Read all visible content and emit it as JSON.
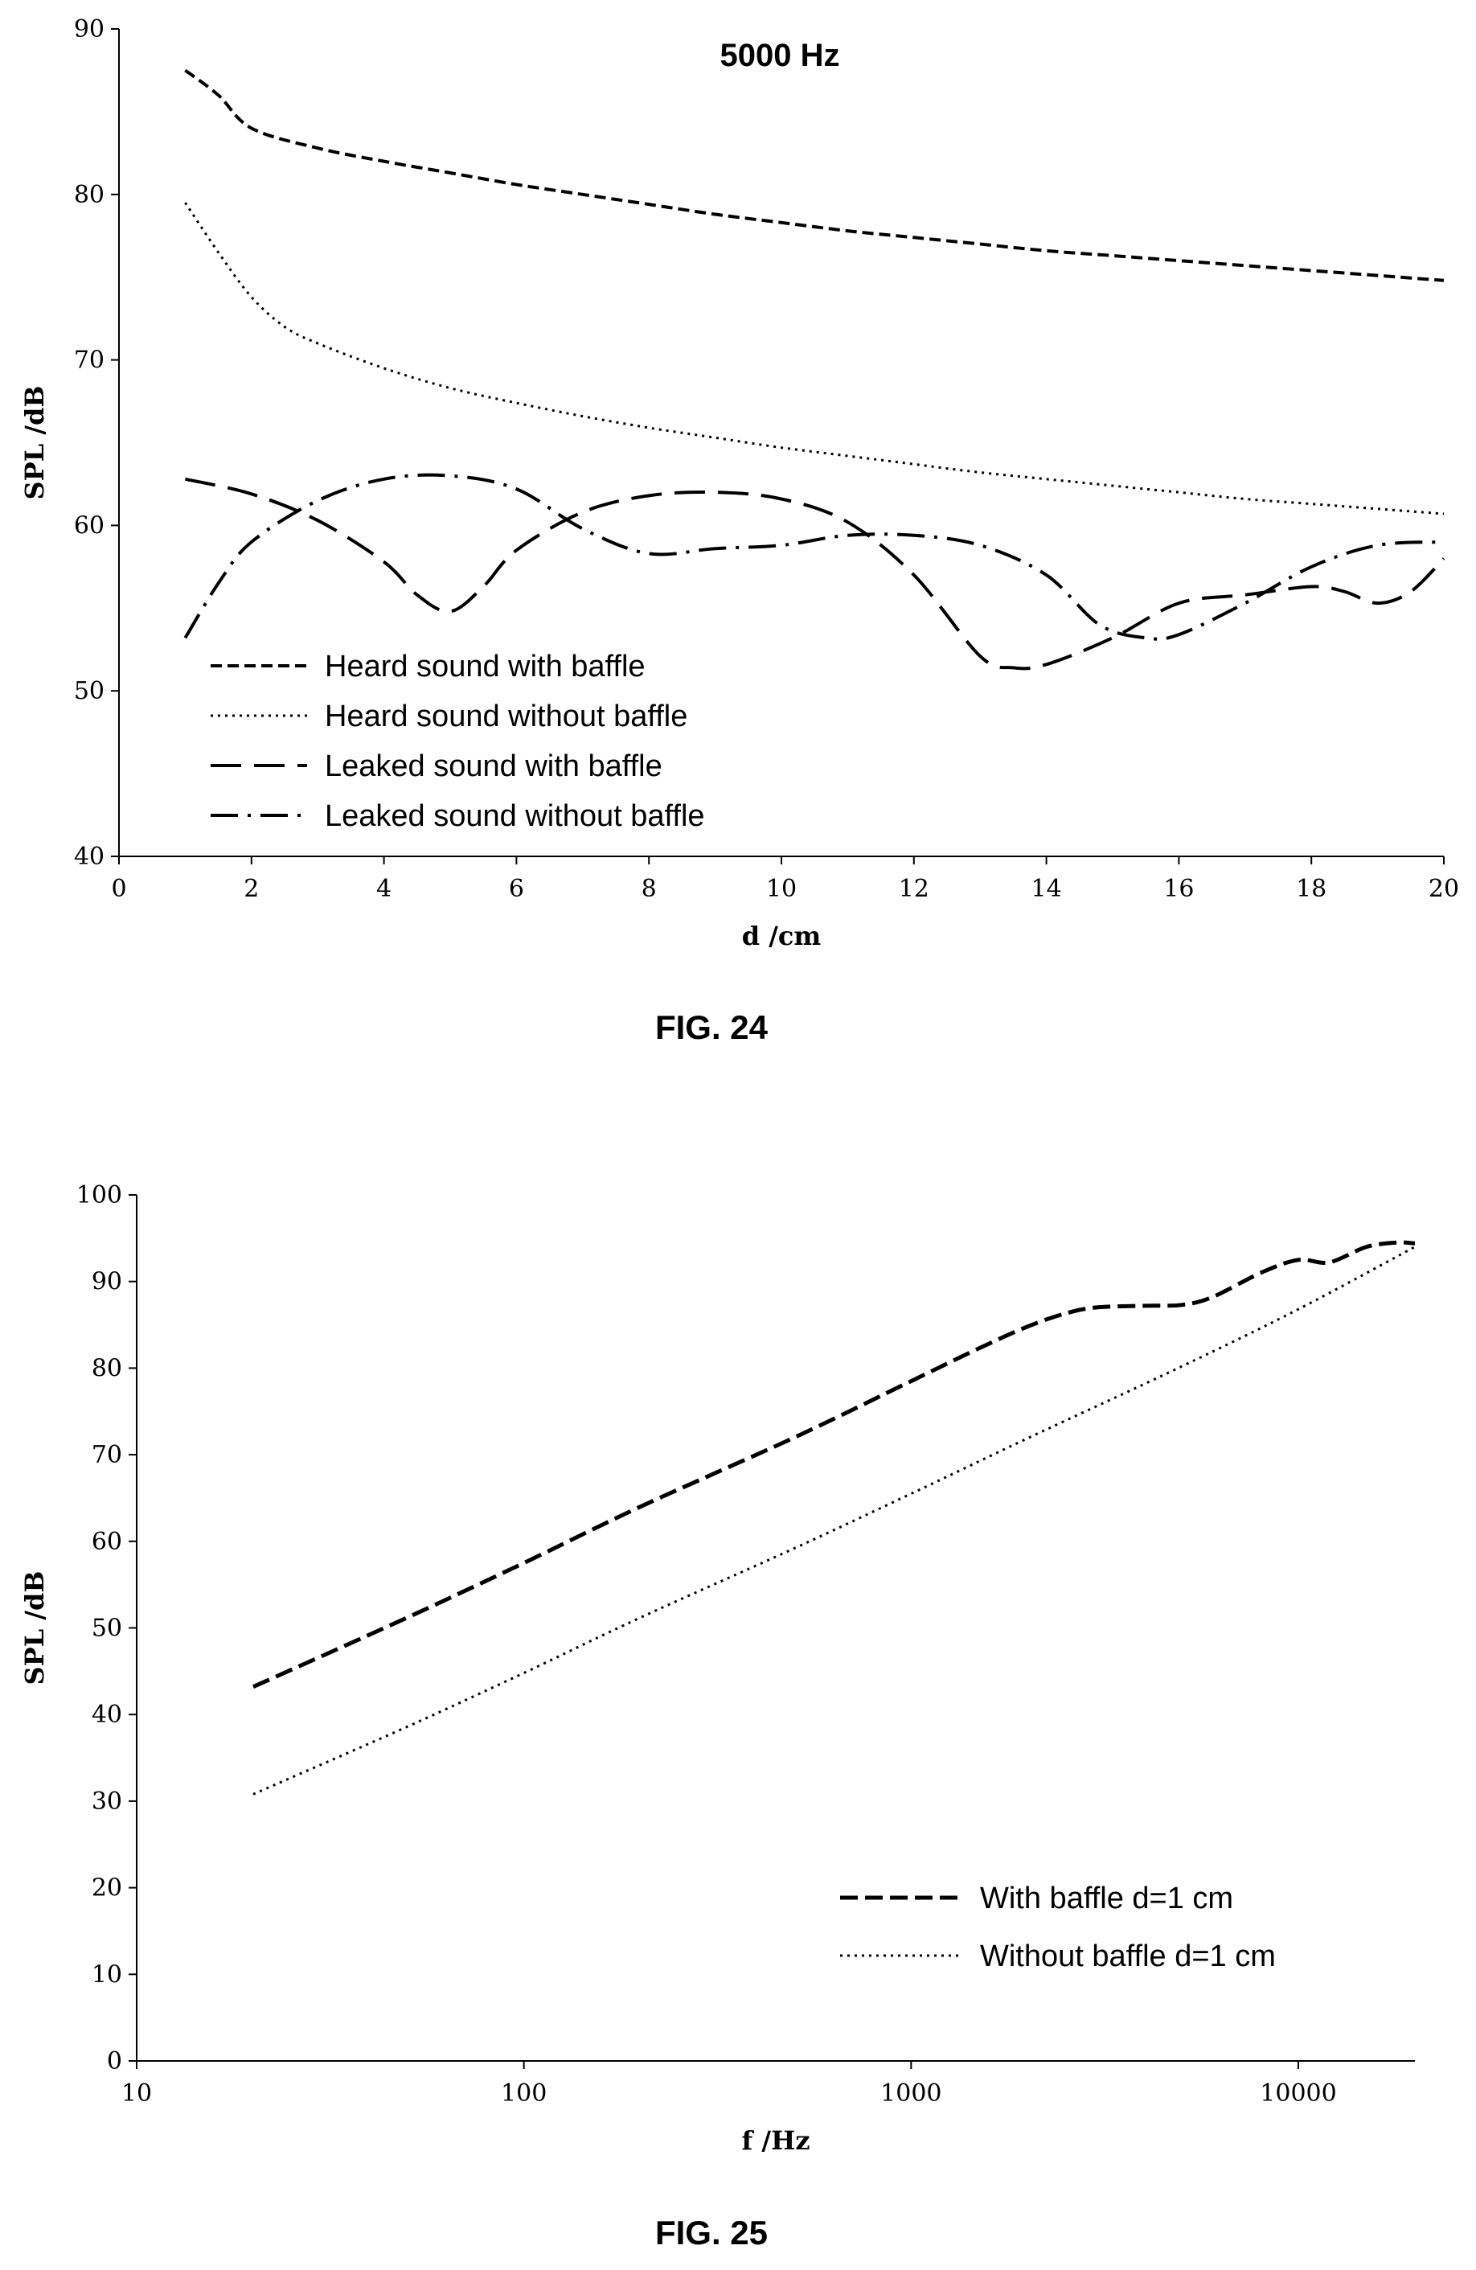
{
  "chart_data": [
    {
      "type": "line",
      "caption": "FIG. 24",
      "title": "5000 Hz",
      "xlabel": "d /cm",
      "ylabel": "SPL /dB",
      "xlim": [
        0,
        20
      ],
      "ylim": [
        40,
        90
      ],
      "xticks": [
        0,
        2,
        4,
        6,
        8,
        10,
        12,
        14,
        16,
        18,
        20
      ],
      "yticks": [
        40,
        50,
        60,
        70,
        80,
        90
      ],
      "x_scale": "linear",
      "legend_position": "bottom-left",
      "series": [
        {
          "name": "Heard sound with baffle",
          "style": "short-dash",
          "x": [
            1,
            1.5,
            2,
            3,
            4,
            5,
            6,
            7,
            8,
            9,
            10,
            11,
            12,
            13,
            14,
            15,
            16,
            17,
            18,
            19,
            20
          ],
          "y": [
            87.5,
            86,
            84,
            82.8,
            82,
            81.3,
            80.6,
            80,
            79.4,
            78.8,
            78.3,
            77.8,
            77.4,
            77,
            76.6,
            76.3,
            76,
            75.7,
            75.4,
            75.1,
            74.8
          ]
        },
        {
          "name": "Heard sound without baffle",
          "style": "dotted",
          "x": [
            1,
            1.5,
            2,
            2.5,
            3,
            4,
            5,
            6,
            7,
            8,
            9,
            10,
            11,
            12,
            13,
            14,
            15,
            16,
            17,
            18,
            19,
            20
          ],
          "y": [
            79.5,
            76.5,
            73.8,
            72,
            71,
            69.5,
            68.3,
            67.4,
            66.6,
            65.9,
            65.3,
            64.7,
            64.2,
            63.7,
            63.2,
            62.8,
            62.4,
            62,
            61.6,
            61.3,
            61,
            60.7
          ]
        },
        {
          "name": "Leaked sound with baffle",
          "style": "long-dash",
          "x": [
            1,
            2,
            3,
            4,
            4.5,
            5,
            5.5,
            6,
            7,
            8,
            9,
            10,
            11,
            12,
            13,
            13.5,
            14,
            15,
            16,
            17,
            18,
            18.5,
            19,
            19.5,
            20
          ],
          "y": [
            62.8,
            61.9,
            60.3,
            57.8,
            55.8,
            54.8,
            56.3,
            58.5,
            60.8,
            61.8,
            62,
            61.6,
            60.2,
            57,
            52.1,
            51.4,
            51.6,
            53.2,
            55.3,
            55.8,
            56.3,
            56,
            55.3,
            56,
            58
          ]
        },
        {
          "name": "Leaked sound without baffle",
          "style": "dash-dot",
          "x": [
            1,
            1.5,
            2,
            3,
            4,
            5,
            6,
            7,
            8,
            9,
            10,
            11,
            12,
            13,
            14,
            14.8,
            15.5,
            16,
            17,
            18,
            19,
            20
          ],
          "y": [
            53.2,
            56.5,
            59,
            61.5,
            62.8,
            63,
            62.2,
            59.8,
            58.3,
            58.6,
            58.8,
            59.4,
            59.4,
            58.8,
            57,
            54,
            53.2,
            53.4,
            55.3,
            57.5,
            58.8,
            59
          ]
        }
      ]
    },
    {
      "type": "line",
      "caption": "FIG. 25",
      "xlabel": "f /Hz",
      "ylabel": "SPL /dB",
      "xlim": [
        10,
        20000
      ],
      "ylim": [
        0,
        100
      ],
      "xticks": [
        10,
        100,
        1000,
        10000
      ],
      "yticks": [
        0,
        10,
        20,
        30,
        40,
        50,
        60,
        70,
        80,
        90,
        100
      ],
      "x_scale": "log",
      "legend_position": "bottom-right",
      "series": [
        {
          "name": "With baffle d=1 cm",
          "style": "dash",
          "x": [
            20,
            50,
            100,
            200,
            500,
            1000,
            1500,
            2000,
            2500,
            3000,
            4000,
            5000,
            6000,
            8000,
            10000,
            12000,
            15000,
            18000,
            20000
          ],
          "y": [
            43.2,
            51.2,
            57.5,
            64,
            72,
            78.5,
            82.3,
            84.8,
            86.3,
            87,
            87.2,
            87.3,
            88.2,
            91,
            92.5,
            92.2,
            94,
            94.5,
            94.4
          ]
        },
        {
          "name": "Without baffle d=1 cm",
          "style": "dotted",
          "x": [
            20,
            50,
            100,
            200,
            500,
            1000,
            2000,
            5000,
            10000,
            20000
          ],
          "y": [
            30.8,
            38.6,
            44.8,
            51.2,
            59.2,
            65.5,
            71.9,
            80.2,
            86.8,
            94
          ]
        }
      ]
    }
  ]
}
